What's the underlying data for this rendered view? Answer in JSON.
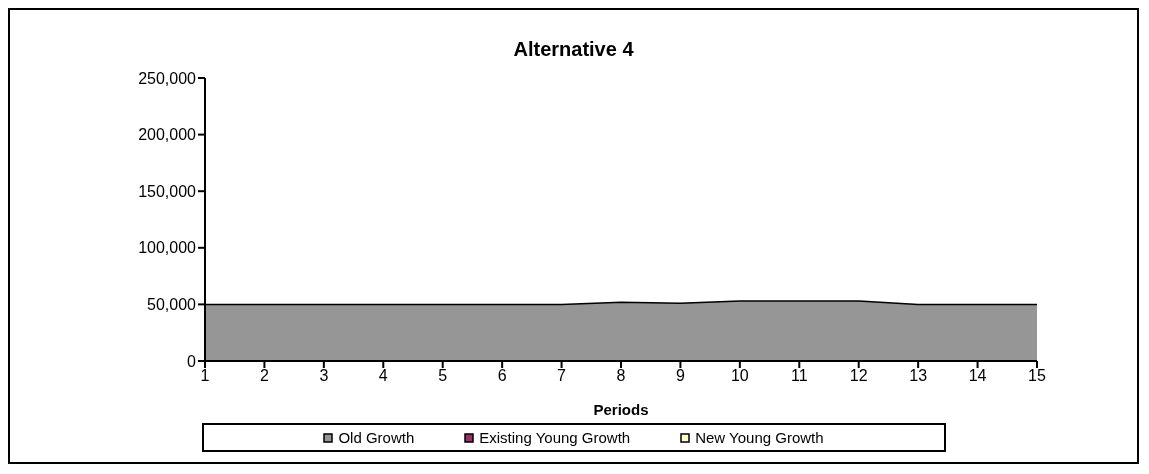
{
  "chart_data": {
    "type": "area",
    "title": "Alternative 4",
    "xlabel": "Periods",
    "x": [
      1,
      2,
      3,
      4,
      5,
      6,
      7,
      8,
      9,
      10,
      11,
      12,
      13,
      14,
      15
    ],
    "series": [
      {
        "name": "Old Growth",
        "color": "#969696",
        "values": [
          50000,
          50000,
          50000,
          50000,
          50000,
          50000,
          50000,
          52000,
          51000,
          53000,
          53000,
          53000,
          50000,
          50000,
          50000
        ]
      },
      {
        "name": "Existing Young Growth",
        "color": "#993366",
        "values": [
          null,
          null,
          null,
          null,
          null,
          null,
          null,
          null,
          null,
          null,
          null,
          null,
          null,
          null,
          null
        ]
      },
      {
        "name": "New Young Growth",
        "color": "#ffffcc",
        "values": [
          null,
          null,
          null,
          null,
          null,
          null,
          null,
          null,
          null,
          null,
          null,
          null,
          null,
          null,
          null
        ]
      }
    ],
    "xlim": [
      1,
      15
    ],
    "xticks": [
      1,
      2,
      3,
      4,
      5,
      6,
      7,
      8,
      9,
      10,
      11,
      12,
      13,
      14,
      15
    ],
    "ylim": [
      0,
      250000
    ],
    "yticks": [
      0,
      {
        "value": 50000,
        "label": "50,000"
      },
      {
        "value": 100000,
        "label": "100,000"
      },
      {
        "value": 150000,
        "label": "150,000"
      },
      {
        "value": 200000,
        "label": "200,000"
      },
      {
        "value": 250000,
        "label": "250,000"
      }
    ],
    "grid": false,
    "legend": "bottom"
  }
}
